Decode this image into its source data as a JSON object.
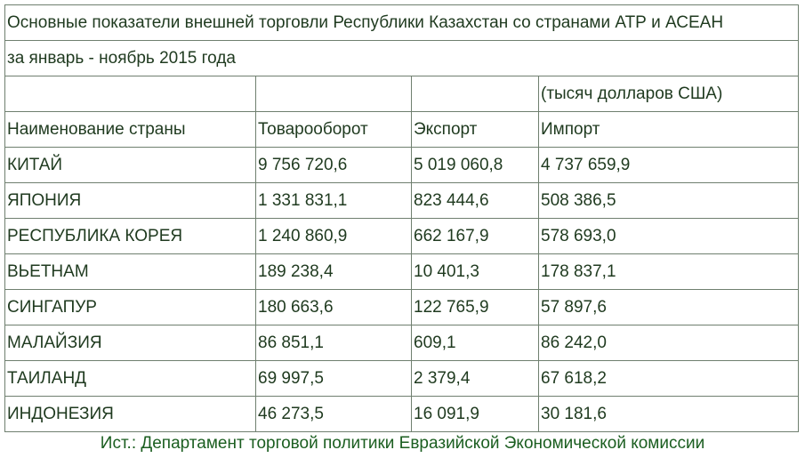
{
  "title": "Основные показатели внешней торговли Республики Казахстан со странами АТР и АСЕАН",
  "subtitle": "за январь - ноябрь 2015 года",
  "units": "(тысяч долларов США)",
  "table": {
    "header": [
      "Наименование страны",
      "Товарооборот",
      "Экспорт",
      "Импорт"
    ],
    "rows": [
      [
        "КИТАЙ",
        "9 756 720,6",
        "5 019 060,8",
        "4 737 659,9"
      ],
      [
        "ЯПОНИЯ",
        "1 331 831,1",
        "823 444,6",
        "508 386,5"
      ],
      [
        "РЕСПУБЛИКА КОРЕЯ",
        "1 240 860,9",
        "662 167,9",
        "578 693,0"
      ],
      [
        "ВЬЕТНАМ",
        "189 238,4",
        "10 401,3",
        "178 837,1"
      ],
      [
        "СИНГАПУР",
        "180 663,6",
        "122 765,9",
        "57 897,6"
      ],
      [
        "МАЛАЙЗИЯ",
        "86 851,1",
        "609,1",
        "86 242,0"
      ],
      [
        "ТАИЛАНД",
        "69 997,5",
        "2 379,4",
        "67 618,2"
      ],
      [
        "ИНДОНЕЗИЯ",
        "46 273,5",
        "16 091,9",
        "30 181,6"
      ]
    ]
  },
  "source": "Ист.: Департамент торговой политики Евразийской Экономической комиссии"
}
